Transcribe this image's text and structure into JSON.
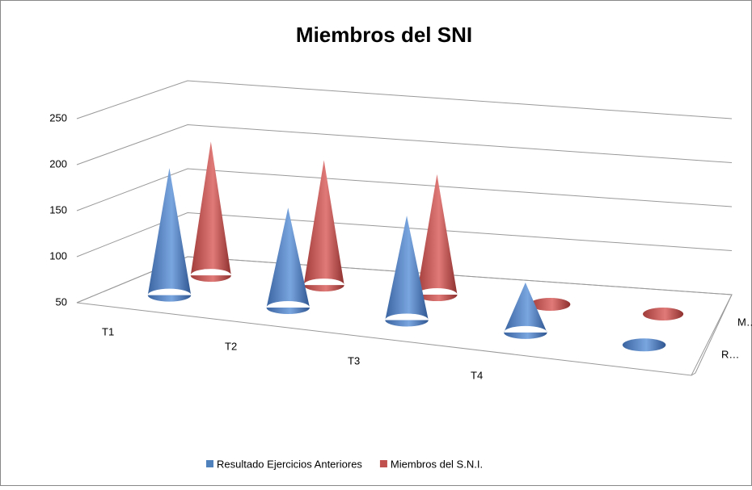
{
  "chart_data": {
    "type": "cone3d",
    "title": "Miembros del SNI",
    "categories": [
      "T1",
      "T2",
      "T3",
      "T4",
      null
    ],
    "series": [
      {
        "name": "Resultado Ejercicios Anteriores",
        "color": "#4f81bd",
        "values": [
          190,
          160,
          165,
          105,
          50
        ]
      },
      {
        "name": "Miembros del S.N.I.",
        "color": "#c0504d",
        "values": [
          200,
          190,
          185,
          50,
          50
        ]
      }
    ],
    "depth_labels": [
      "R…",
      "M…"
    ],
    "ylim": [
      50,
      250
    ],
    "yticks": [
      50,
      100,
      150,
      200,
      250
    ],
    "grid": true,
    "legend": "bottom"
  }
}
